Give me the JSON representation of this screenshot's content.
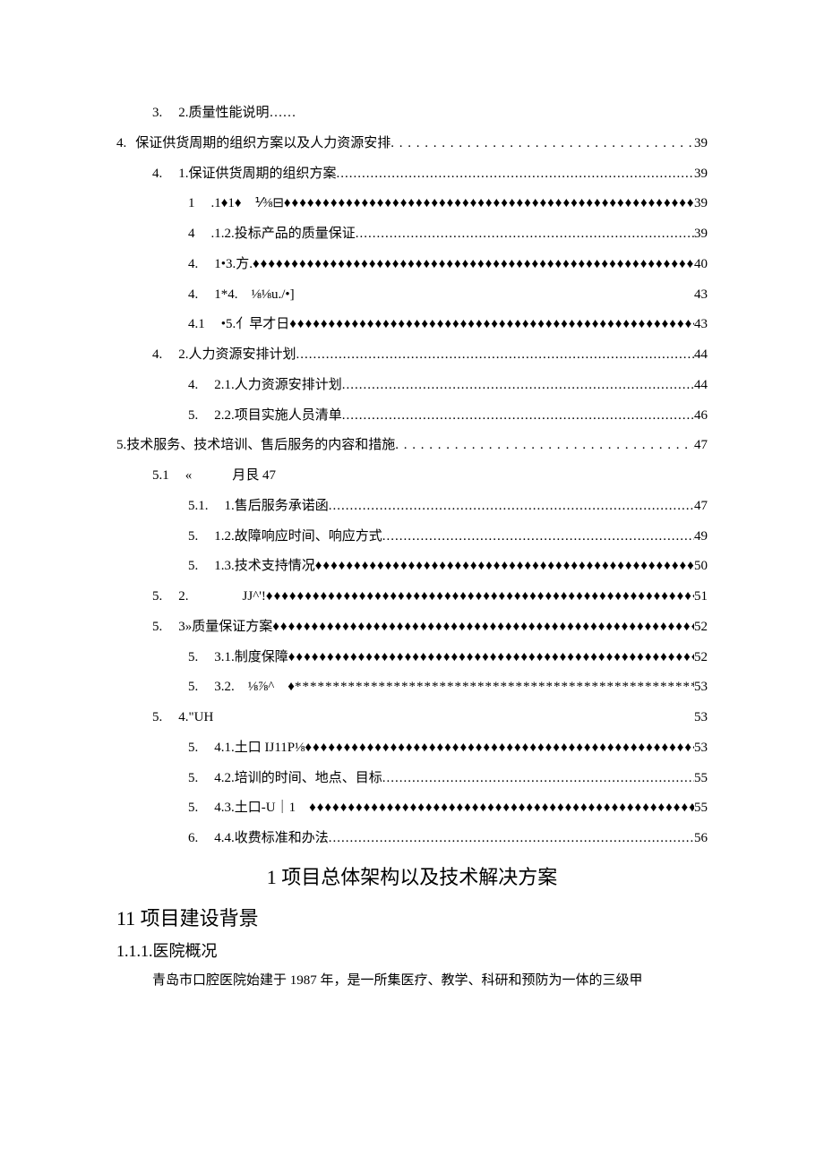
{
  "toc": [
    {
      "indent": 1,
      "num": "3.",
      "numGap": "wide",
      "label": "2.质量性能说明……",
      "leader": "",
      "page": ""
    },
    {
      "indent": 0,
      "num": "4.",
      "numGap": "normal",
      "label": "保证供货周期的组织方案以及人力资源安排",
      "leader": "dots-half",
      "page": "39"
    },
    {
      "indent": 1,
      "num": "4.",
      "numGap": "wide",
      "label": "1.保证供货周期的组织方案",
      "leader": "dots-full",
      "page": "39"
    },
    {
      "indent": 2,
      "num": "1",
      "numGap": "wide",
      "label": ".1♦1♦ ⅟⅜⊟",
      "leader": "diamonds",
      "page": "39"
    },
    {
      "indent": 2,
      "num": "4",
      "numGap": "wide",
      "label": ".1.2.投标产品的质量保证",
      "leader": "dots-full",
      "page": "39"
    },
    {
      "indent": 2,
      "num": "4.",
      "numGap": "wide",
      "label": "1•3.方.",
      "leader": "diamonds",
      "page": "40"
    },
    {
      "indent": 2,
      "num": "4.",
      "numGap": "wide",
      "label": "1*4. ⅛⅛u./•]",
      "leader": "spaces",
      "page": "43"
    },
    {
      "indent": 2,
      "num": "4.1",
      "numGap": "wide",
      "label": "•5.亻早才日",
      "leader": "diamonds",
      "page": "43"
    },
    {
      "indent": 1,
      "num": "4.",
      "numGap": "wide",
      "label": "2.人力资源安排计划",
      "leader": "dots-full",
      "page": "44"
    },
    {
      "indent": 2,
      "num": "4.",
      "numGap": "wide",
      "label": "2.1.人力资源安排计划",
      "leader": "dots-full",
      "page": "44"
    },
    {
      "indent": 2,
      "num": "5.",
      "numGap": "wide",
      "label": "2.2.项目实施人员清单",
      "leader": "dots-full",
      "page": "46"
    },
    {
      "indent": 0,
      "num": "5.",
      "numGap": "none",
      "label": "技术服务、技术培训、售后服务的内容和措施",
      "leader": "dots-half",
      "page": "47"
    },
    {
      "indent": 1,
      "num": "5.1",
      "numGap": "wide",
      "label": "«   月艮 47",
      "leader": "",
      "page": ""
    },
    {
      "indent": 2,
      "num": "5.1.",
      "numGap": "wide",
      "label": "1.售后服务承诺函",
      "leader": "dots-full",
      "page": "47"
    },
    {
      "indent": 2,
      "num": "5.",
      "numGap": "wide",
      "label": "1.2.故障响应时间、响应方式",
      "leader": "dots-full",
      "page": "49"
    },
    {
      "indent": 2,
      "num": "5.",
      "numGap": "wide",
      "label": "1.3.技术支持情况",
      "leader": "diamonds",
      "page": "50"
    },
    {
      "indent": 1,
      "num": "5.",
      "numGap": "wide",
      "label": "2.    JJ^'!",
      "leader": "diamonds",
      "page": "51"
    },
    {
      "indent": 1,
      "num": "5.",
      "numGap": "wide",
      "label": "3»质量保证方案",
      "leader": "diamonds",
      "page": "52"
    },
    {
      "indent": 2,
      "num": "5.",
      "numGap": "wide",
      "label": "3.1.制度保障",
      "leader": "diamonds",
      "page": "52"
    },
    {
      "indent": 2,
      "num": "5.",
      "numGap": "wide",
      "label": "3.2. ⅛⅞^ ♦",
      "leader": "stars",
      "page": "53"
    },
    {
      "indent": 1,
      "num": "5.",
      "numGap": "wide",
      "label": "4.\"UH",
      "leader": "spaces",
      "page": "53"
    },
    {
      "indent": 2,
      "num": "5.",
      "numGap": "wide",
      "label": "4.1.土口 IJ11P⅛",
      "leader": "diamonds",
      "page": "53"
    },
    {
      "indent": 2,
      "num": "5.",
      "numGap": "wide",
      "label": "4.2.培训的时间、地点、目标",
      "leader": "dots-full",
      "page": "55"
    },
    {
      "indent": 2,
      "num": "5.",
      "numGap": "wide",
      "label": "4.3.土口-U｜1 ",
      "leader": "diamonds",
      "page": "55"
    },
    {
      "indent": 2,
      "num": "6.",
      "numGap": "wide",
      "label": "4.4.收费标准和办法",
      "leader": "dots-full",
      "page": "56"
    }
  ],
  "leaders": {
    "dots-full": "...............................................................................................",
    "dots-half": ". . . . . . . . . . . . . . . . . . . . . . . . . . . . . . . . . . . . . . . . . . . . . . . .",
    "diamonds": "♦♦♦♦♦♦♦♦♦♦♦♦♦♦♦♦♦♦♦♦♦♦♦♦♦♦♦♦♦♦♦♦♦♦♦♦♦♦♦♦♦♦♦♦♦♦♦♦♦♦♦♦♦♦♦♦♦♦♦♦♦♦♦♦♦♦♦♦♦♦",
    "stars": "*********************************************************************",
    "spaces": ""
  },
  "heading1": "1 项目总体架构以及技术解决方案",
  "heading2": "11 项目建设背景",
  "heading3": "1.1.1.医院概况",
  "body1": "青岛市口腔医院始建于 1987 年，是一所集医疗、教学、科研和预防为一体的三级甲"
}
